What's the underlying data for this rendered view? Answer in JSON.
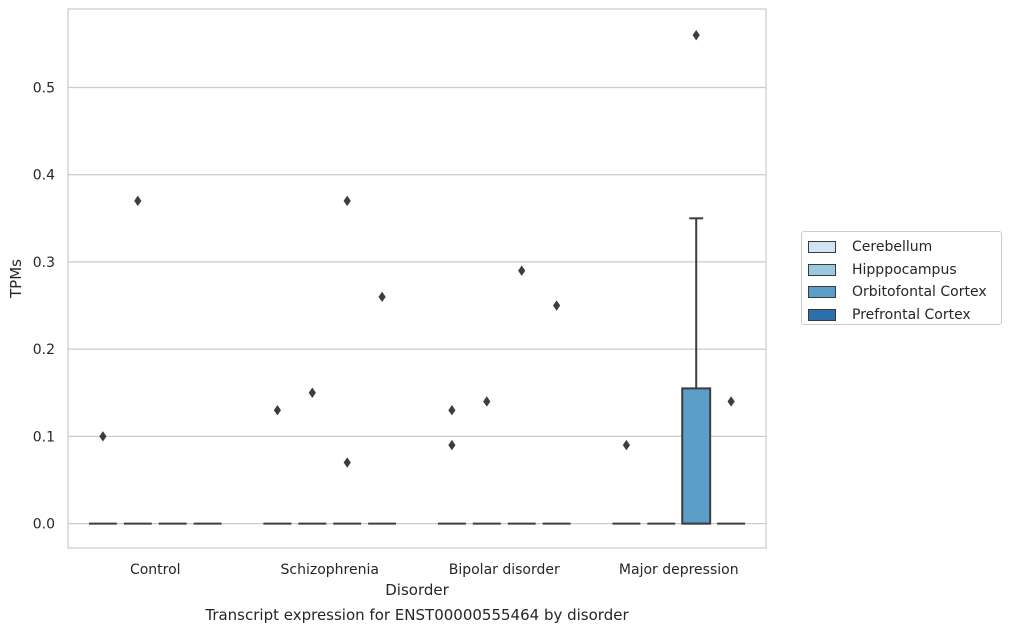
{
  "caption": "Transcript expression for ENST00000555464 by disorder",
  "chart_data": {
    "type": "box",
    "xlabel": "Disorder",
    "ylabel": "TPMs",
    "categories": [
      "Control",
      "Schizophrenia",
      "Bipolar disorder",
      "Major depression"
    ],
    "ylim": [
      -0.028,
      0.59
    ],
    "yticks": [
      0.0,
      0.1,
      0.2,
      0.3,
      0.4,
      0.5
    ],
    "ytick_labels": [
      "0.0",
      "0.1",
      "0.2",
      "0.3",
      "0.4",
      "0.5"
    ],
    "grid": "horizontal",
    "legend_position": "right",
    "hue_order": [
      "Cerebellum",
      "Hipppocampus",
      "Orbitofontal Cortex",
      "Prefrontal Cortex"
    ],
    "colors": [
      "#d2e3f3",
      "#9ac8e0",
      "#5a9ec9",
      "#2c6fab"
    ],
    "boxes": [
      {
        "category": "Control",
        "hue": "Cerebellum",
        "q1": 0,
        "median": 0,
        "q3": 0,
        "whisker_low": 0,
        "whisker_high": 0,
        "outliers": [
          0.1
        ]
      },
      {
        "category": "Control",
        "hue": "Hipppocampus",
        "q1": 0,
        "median": 0,
        "q3": 0,
        "whisker_low": 0,
        "whisker_high": 0,
        "outliers": [
          0.37
        ]
      },
      {
        "category": "Control",
        "hue": "Orbitofontal Cortex",
        "q1": 0,
        "median": 0,
        "q3": 0,
        "whisker_low": 0,
        "whisker_high": 0,
        "outliers": []
      },
      {
        "category": "Control",
        "hue": "Prefrontal Cortex",
        "q1": 0,
        "median": 0,
        "q3": 0,
        "whisker_low": 0,
        "whisker_high": 0,
        "outliers": []
      },
      {
        "category": "Schizophrenia",
        "hue": "Cerebellum",
        "q1": 0,
        "median": 0,
        "q3": 0,
        "whisker_low": 0,
        "whisker_high": 0,
        "outliers": [
          0.13
        ]
      },
      {
        "category": "Schizophrenia",
        "hue": "Hipppocampus",
        "q1": 0,
        "median": 0,
        "q3": 0,
        "whisker_low": 0,
        "whisker_high": 0,
        "outliers": [
          0.15
        ]
      },
      {
        "category": "Schizophrenia",
        "hue": "Orbitofontal Cortex",
        "q1": 0,
        "median": 0,
        "q3": 0,
        "whisker_low": 0,
        "whisker_high": 0,
        "outliers": [
          0.37,
          0.07
        ]
      },
      {
        "category": "Schizophrenia",
        "hue": "Prefrontal Cortex",
        "q1": 0,
        "median": 0,
        "q3": 0,
        "whisker_low": 0,
        "whisker_high": 0,
        "outliers": [
          0.26
        ]
      },
      {
        "category": "Bipolar disorder",
        "hue": "Cerebellum",
        "q1": 0,
        "median": 0,
        "q3": 0,
        "whisker_low": 0,
        "whisker_high": 0,
        "outliers": [
          0.13,
          0.09
        ]
      },
      {
        "category": "Bipolar disorder",
        "hue": "Hipppocampus",
        "q1": 0,
        "median": 0,
        "q3": 0,
        "whisker_low": 0,
        "whisker_high": 0,
        "outliers": [
          0.14
        ]
      },
      {
        "category": "Bipolar disorder",
        "hue": "Orbitofontal Cortex",
        "q1": 0,
        "median": 0,
        "q3": 0,
        "whisker_low": 0,
        "whisker_high": 0,
        "outliers": [
          0.29
        ]
      },
      {
        "category": "Bipolar disorder",
        "hue": "Prefrontal Cortex",
        "q1": 0,
        "median": 0,
        "q3": 0,
        "whisker_low": 0,
        "whisker_high": 0,
        "outliers": [
          0.25
        ]
      },
      {
        "category": "Major depression",
        "hue": "Cerebellum",
        "q1": 0,
        "median": 0,
        "q3": 0,
        "whisker_low": 0,
        "whisker_high": 0,
        "outliers": [
          0.09
        ]
      },
      {
        "category": "Major depression",
        "hue": "Hipppocampus",
        "q1": 0,
        "median": 0,
        "q3": 0,
        "whisker_low": 0,
        "whisker_high": 0,
        "outliers": []
      },
      {
        "category": "Major depression",
        "hue": "Orbitofontal Cortex",
        "q1": 0,
        "median": 0,
        "q3": 0.155,
        "whisker_low": 0,
        "whisker_high": 0.35,
        "outliers": [
          0.56
        ]
      },
      {
        "category": "Major depression",
        "hue": "Prefrontal Cortex",
        "q1": 0,
        "median": 0,
        "q3": 0,
        "whisker_low": 0,
        "whisker_high": 0,
        "outliers": [
          0.14
        ]
      }
    ]
  },
  "legend": {
    "items": [
      {
        "label": "Cerebellum",
        "color": "#d2e3f3"
      },
      {
        "label": "Hipppocampus",
        "color": "#9ac8e0"
      },
      {
        "label": "Orbitofontal Cortex",
        "color": "#5a9ec9"
      },
      {
        "label": "Prefrontal Cortex",
        "color": "#2c6fab"
      }
    ]
  }
}
